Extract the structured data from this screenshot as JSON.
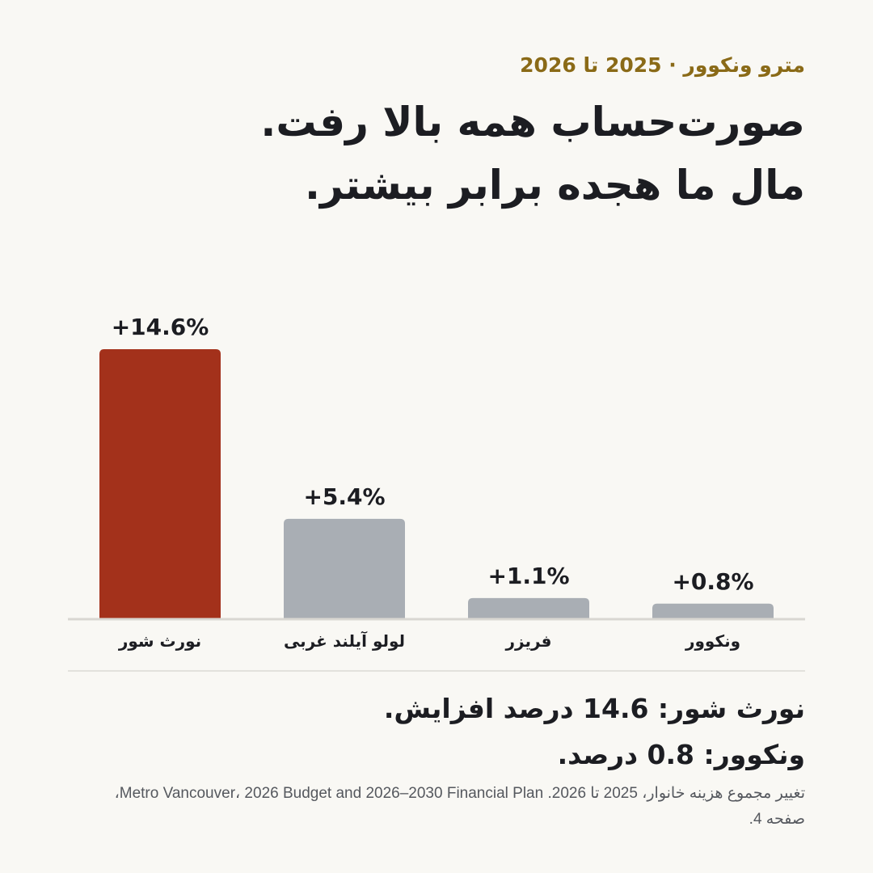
{
  "header": {
    "kicker": "مترو ونکوور · 2025 تا 2026",
    "headline_line1": "صورت‌حساب همه بالا رفت.",
    "headline_line2": "مال ما هجده برابر بیشتر."
  },
  "chart_data": {
    "type": "bar",
    "categories": [
      "نورث شور",
      "لولو آیلند غربی",
      "فریزر",
      "ونکوور"
    ],
    "values": [
      14.6,
      5.4,
      1.1,
      0.8
    ],
    "data_labels": [
      "+14.6%",
      "+5.4%",
      "+1.1%",
      "+0.8%"
    ],
    "colors": [
      "#a3311b",
      "#a9aeb4",
      "#a9aeb4",
      "#a9aeb4"
    ],
    "ylim": [
      0,
      16
    ],
    "title": "",
    "xlabel": "",
    "ylabel": "",
    "grid": false,
    "legend": "none"
  },
  "summary": {
    "line1": "نورث شور: 14.6 درصد افزایش.",
    "line2": "ونکوور: 0.8 درصد."
  },
  "source": "تغییر مجموع هزینه خانوار، 2025 تا 2026. Metro Vancouver، 2026 Budget and 2026–2030 Financial Plan، صفحه 4."
}
